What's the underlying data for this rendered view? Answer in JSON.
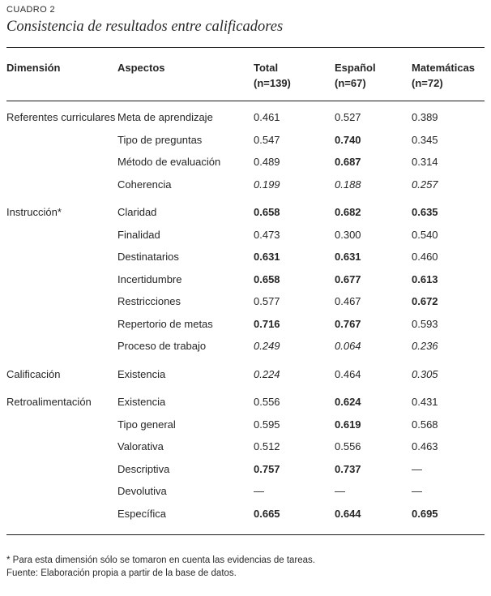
{
  "header": {
    "kicker": "CUADRO 2",
    "title": "Consistencia de resultados entre calificadores"
  },
  "table": {
    "columns": [
      {
        "label": "Dimensión",
        "sub": ""
      },
      {
        "label": "Aspectos",
        "sub": ""
      },
      {
        "label": "Total",
        "sub": "(n=139)"
      },
      {
        "label": "Español",
        "sub": "(n=67)"
      },
      {
        "label": "Matemáticas",
        "sub": "(n=72)"
      }
    ],
    "rows": [
      {
        "dimension": "Referentes curriculares",
        "group_start": true,
        "aspect": "Meta de aprendizaje",
        "values": [
          {
            "v": "0.461",
            "style": "normal"
          },
          {
            "v": "0.527",
            "style": "normal"
          },
          {
            "v": "0.389",
            "style": "normal"
          }
        ]
      },
      {
        "dimension": "",
        "group_start": false,
        "aspect": "Tipo de preguntas",
        "values": [
          {
            "v": "0.547",
            "style": "normal"
          },
          {
            "v": "0.740",
            "style": "bold"
          },
          {
            "v": "0.345",
            "style": "normal"
          }
        ]
      },
      {
        "dimension": "",
        "group_start": false,
        "aspect": "Método de evaluación",
        "values": [
          {
            "v": "0.489",
            "style": "normal"
          },
          {
            "v": "0.687",
            "style": "bold"
          },
          {
            "v": "0.314",
            "style": "normal"
          }
        ]
      },
      {
        "dimension": "",
        "group_start": false,
        "aspect": "Coherencia",
        "values": [
          {
            "v": "0.199",
            "style": "italic"
          },
          {
            "v": "0.188",
            "style": "italic"
          },
          {
            "v": "0.257",
            "style": "italic"
          }
        ]
      },
      {
        "dimension": "Instrucción*",
        "group_start": true,
        "aspect": "Claridad",
        "values": [
          {
            "v": "0.658",
            "style": "bold"
          },
          {
            "v": "0.682",
            "style": "bold"
          },
          {
            "v": "0.635",
            "style": "bold"
          }
        ]
      },
      {
        "dimension": "",
        "group_start": false,
        "aspect": "Finalidad",
        "values": [
          {
            "v": "0.473",
            "style": "normal"
          },
          {
            "v": "0.300",
            "style": "normal"
          },
          {
            "v": "0.540",
            "style": "normal"
          }
        ]
      },
      {
        "dimension": "",
        "group_start": false,
        "aspect": "Destinatarios",
        "values": [
          {
            "v": "0.631",
            "style": "bold"
          },
          {
            "v": "0.631",
            "style": "bold"
          },
          {
            "v": "0.460",
            "style": "normal"
          }
        ]
      },
      {
        "dimension": "",
        "group_start": false,
        "aspect": "Incertidumbre",
        "values": [
          {
            "v": "0.658",
            "style": "bold"
          },
          {
            "v": "0.677",
            "style": "bold"
          },
          {
            "v": "0.613",
            "style": "bold"
          }
        ]
      },
      {
        "dimension": "",
        "group_start": false,
        "aspect": "Restricciones",
        "values": [
          {
            "v": "0.577",
            "style": "normal"
          },
          {
            "v": "0.467",
            "style": "normal"
          },
          {
            "v": "0.672",
            "style": "bold"
          }
        ]
      },
      {
        "dimension": "",
        "group_start": false,
        "aspect": "Repertorio de metas",
        "values": [
          {
            "v": "0.716",
            "style": "bold"
          },
          {
            "v": "0.767",
            "style": "bold"
          },
          {
            "v": "0.593",
            "style": "normal"
          }
        ]
      },
      {
        "dimension": "",
        "group_start": false,
        "aspect": "Proceso de trabajo",
        "values": [
          {
            "v": "0.249",
            "style": "italic"
          },
          {
            "v": "0.064",
            "style": "italic"
          },
          {
            "v": "0.236",
            "style": "italic"
          }
        ]
      },
      {
        "dimension": "Calificación",
        "group_start": true,
        "aspect": "Existencia",
        "values": [
          {
            "v": "0.224",
            "style": "italic"
          },
          {
            "v": "0.464",
            "style": "normal"
          },
          {
            "v": "0.305",
            "style": "italic"
          }
        ]
      },
      {
        "dimension": "Retroalimentación",
        "group_start": true,
        "aspect": "Existencia",
        "values": [
          {
            "v": "0.556",
            "style": "normal"
          },
          {
            "v": "0.624",
            "style": "bold"
          },
          {
            "v": "0.431",
            "style": "normal"
          }
        ]
      },
      {
        "dimension": "",
        "group_start": false,
        "aspect": "Tipo general",
        "values": [
          {
            "v": "0.595",
            "style": "normal"
          },
          {
            "v": "0.619",
            "style": "bold"
          },
          {
            "v": "0.568",
            "style": "normal"
          }
        ]
      },
      {
        "dimension": "",
        "group_start": false,
        "aspect": "Valorativa",
        "values": [
          {
            "v": "0.512",
            "style": "normal"
          },
          {
            "v": "0.556",
            "style": "normal"
          },
          {
            "v": "0.463",
            "style": "normal"
          }
        ]
      },
      {
        "dimension": "",
        "group_start": false,
        "aspect": "Descriptiva",
        "values": [
          {
            "v": "0.757",
            "style": "bold"
          },
          {
            "v": "0.737",
            "style": "bold"
          },
          {
            "v": "—",
            "style": "normal"
          }
        ]
      },
      {
        "dimension": "",
        "group_start": false,
        "aspect": "Devolutiva",
        "values": [
          {
            "v": "—",
            "style": "normal"
          },
          {
            "v": "—",
            "style": "normal"
          },
          {
            "v": "—",
            "style": "normal"
          }
        ]
      },
      {
        "dimension": "",
        "group_start": false,
        "aspect": "Específica",
        "values": [
          {
            "v": "0.665",
            "style": "bold"
          },
          {
            "v": "0.644",
            "style": "bold"
          },
          {
            "v": "0.695",
            "style": "bold"
          }
        ]
      }
    ]
  },
  "footnotes": [
    "* Para esta dimensión sólo se tomaron en cuenta las evidencias de tareas.",
    "Fuente: Elaboración propia a partir de la base de datos."
  ],
  "colors": {
    "text": "#262626",
    "rule": "#1a1a1a",
    "background": "#ffffff"
  }
}
